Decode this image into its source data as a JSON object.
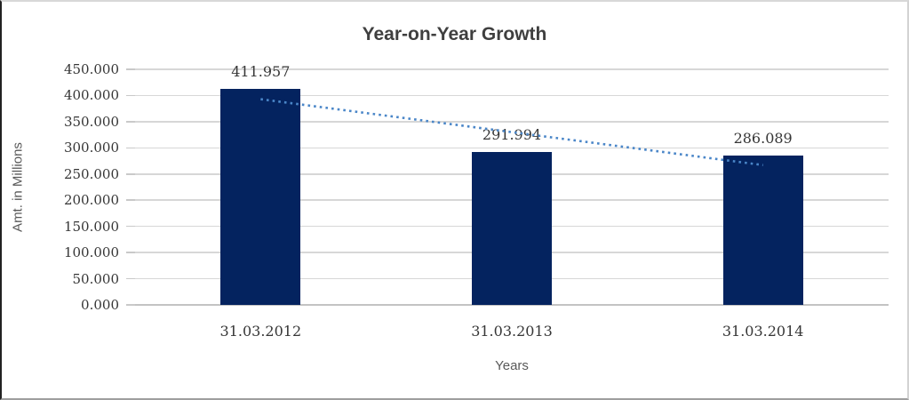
{
  "chart_data": {
    "type": "bar",
    "title": "Year-on-Year Growth",
    "categories": [
      "31.03.2012",
      "31.03.2013",
      "31.03.2014"
    ],
    "values": [
      411.957,
      291.994,
      286.089
    ],
    "data_labels": [
      "411.957",
      "291.994",
      "286.089"
    ],
    "xlabel": "Years",
    "ylabel": "Amt. in Millions",
    "ylim": [
      0,
      450
    ],
    "ytick_step": 50,
    "ytick_labels": [
      "450.000",
      "400.000",
      "350.000",
      "300.000",
      "250.000",
      "200.000",
      "150.000",
      "100.000",
      "50.000",
      "0.000"
    ],
    "grid": true,
    "legend": "none",
    "trendline": {
      "type": "linear",
      "style": "dotted"
    },
    "colors": {
      "bar_fill": "#04235F",
      "trendline": "#4A86C8",
      "gridline": "#D7D7D7",
      "axis_line": "#C3C3C3",
      "tick_mark": "#C9C9C9",
      "title_text": "#3F3F3F",
      "number_text": "#363636",
      "axis_title_text": "#595959",
      "background": "#FFFFFF"
    }
  }
}
